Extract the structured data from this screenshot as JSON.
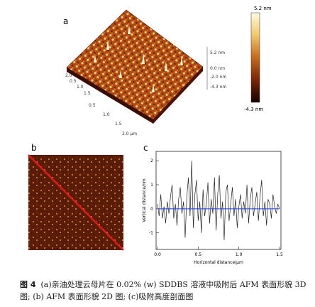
{
  "panel_a": {
    "label": "a",
    "colorbar_max": "5.2 nm",
    "colorbar_min": "-4.3 nm",
    "z_ticks": [
      "5.2 nm",
      "0.0 nm",
      "-2.0 nm",
      "-4.3 nm"
    ],
    "x_ticks": [
      "0.5",
      "1.0",
      "1.5",
      "2.0 μm"
    ],
    "y_ticks": [
      "0.5",
      "1.0",
      "1.5",
      "2.0"
    ]
  },
  "panel_b": {
    "label": "b"
  },
  "panel_c": {
    "label": "c",
    "xlabel": "Horizontal distance/μm",
    "ylabel": "Vertical distance/nm",
    "x_ticks": [
      "0.0",
      "0.5",
      "1.0",
      "1.5"
    ],
    "y_ticks": [
      "-1",
      "0",
      "1",
      "2"
    ]
  },
  "caption": {
    "number": "图 4",
    "text": "(a)亲油处理云母片在 0.02% (w) SDDBS 溶液中吸附后 AFM 表面形貌 3D 图; (b) AFM 表面形貌 2D 图; (c)吸附高度剖面图"
  },
  "chart_data": {
    "type": "line",
    "title": "",
    "xlabel": "Horizontal distance/μm",
    "ylabel": "Vertical distance/nm",
    "xlim": [
      0,
      1.5
    ],
    "ylim": [
      -1.6,
      2.3
    ],
    "series": [
      {
        "x": [
          0,
          0.02,
          0.04,
          0.06,
          0.08,
          0.1,
          0.12,
          0.14,
          0.16,
          0.18,
          0.2,
          0.22,
          0.24,
          0.26,
          0.28,
          0.3,
          0.32,
          0.34,
          0.36,
          0.38,
          0.4,
          0.42,
          0.44,
          0.46,
          0.48,
          0.5,
          0.52,
          0.54,
          0.56,
          0.58,
          0.6,
          0.62,
          0.64,
          0.66,
          0.68,
          0.7,
          0.72,
          0.74,
          0.76,
          0.78,
          0.8,
          0.82,
          0.84,
          0.86,
          0.88,
          0.9,
          0.92,
          0.94,
          0.96,
          0.98,
          1.0,
          1.02,
          1.04,
          1.06,
          1.08,
          1.1,
          1.12,
          1.14,
          1.16,
          1.18,
          1.2,
          1.22,
          1.24,
          1.26,
          1.28,
          1.3,
          1.32,
          1.34,
          1.36,
          1.38,
          1.4,
          1.42,
          1.44,
          1.46,
          1.48,
          1.5
        ],
        "values": [
          0.2,
          -0.3,
          0.6,
          -0.4,
          0.1,
          -0.6,
          0.3,
          -0.2,
          0.5,
          1.0,
          -0.4,
          0.2,
          -0.7,
          0.4,
          0.9,
          -0.2,
          0.3,
          -1.2,
          0.5,
          1.3,
          -0.3,
          2.0,
          -0.8,
          0.6,
          1.2,
          -0.5,
          0.3,
          -1.0,
          0.8,
          -0.3,
          0.2,
          1.1,
          -0.6,
          0.4,
          -0.2,
          1.3,
          -0.9,
          0.6,
          1.4,
          -0.4,
          0.3,
          -1.3,
          0.7,
          1.0,
          -0.5,
          0.2,
          0.9,
          -0.3,
          0.4,
          -0.8,
          0.1,
          0.6,
          -0.4,
          0.3,
          -0.2,
          1.0,
          -0.6,
          0.4,
          0.9,
          -0.3,
          0.2,
          0.7,
          -0.5,
          0.5,
          1.2,
          -0.3,
          0.3,
          -0.7,
          0.4,
          0.2,
          -0.4,
          0.6,
          0.1,
          -0.2,
          0.2,
          0.0
        ]
      },
      {
        "x": [
          0,
          1.5
        ],
        "values": [
          0.0,
          0.0
        ]
      }
    ]
  }
}
